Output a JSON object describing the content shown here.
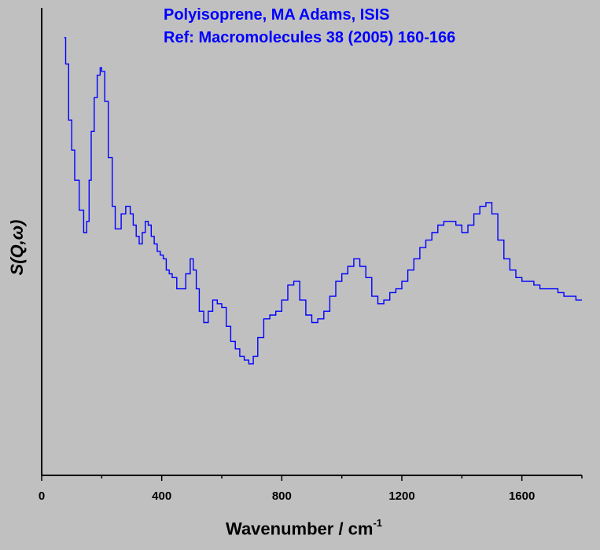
{
  "chart_data": {
    "type": "line",
    "title_lines": [
      "Polyisoprene, MA Adams, ISIS",
      "Ref: Macromolecules 38 (2005) 160-166"
    ],
    "xlabel": {
      "text": "Wavenumber / cm",
      "superscript": "-1"
    },
    "ylabel": "S(Q,ω)",
    "xlim": [
      0,
      1800
    ],
    "ylim": [
      0,
      100
    ],
    "x_ticks": [
      0,
      400,
      800,
      1200,
      1600
    ],
    "x_tick_labels": [
      "0",
      "400",
      "800",
      "1200",
      "1600"
    ],
    "y_tick_labels_shown": false,
    "grid": false,
    "series": [
      {
        "color": "#0000ff",
        "x": [
          75,
          80,
          90,
          100,
          110,
          125,
          140,
          150,
          158,
          165,
          175,
          185,
          195,
          200,
          210,
          222,
          235,
          245,
          255,
          265,
          280,
          295,
          305,
          315,
          325,
          335,
          345,
          355,
          365,
          375,
          385,
          395,
          405,
          415,
          425,
          435,
          450,
          465,
          480,
          495,
          505,
          515,
          525,
          540,
          555,
          570,
          585,
          600,
          615,
          630,
          645,
          660,
          675,
          690,
          705,
          720,
          740,
          760,
          780,
          800,
          820,
          840,
          860,
          880,
          900,
          920,
          940,
          960,
          980,
          1000,
          1020,
          1040,
          1050,
          1060,
          1080,
          1100,
          1120,
          1140,
          1160,
          1180,
          1200,
          1220,
          1240,
          1260,
          1280,
          1300,
          1320,
          1340,
          1360,
          1380,
          1400,
          1420,
          1440,
          1460,
          1480,
          1500,
          1520,
          1540,
          1560,
          1580,
          1600,
          1620,
          1640,
          1660,
          1680,
          1700,
          1720,
          1740,
          1760,
          1780,
          1800
        ],
        "y": [
          100,
          93,
          78,
          70,
          62,
          54,
          48,
          51,
          62,
          75,
          84,
          90,
          92,
          91,
          83,
          68,
          55,
          49,
          49,
          53,
          55,
          53,
          50,
          47,
          45,
          48,
          51,
          50,
          47,
          45,
          43,
          42,
          41,
          38,
          37,
          36,
          33,
          33,
          37,
          41,
          38,
          33,
          27,
          24,
          27,
          30,
          29,
          28,
          23,
          19,
          17,
          15,
          14,
          13,
          15,
          20,
          25,
          26,
          27,
          30,
          34,
          35,
          30,
          26,
          24,
          25,
          27,
          31,
          35,
          37,
          39,
          41,
          41,
          39,
          36,
          31,
          29,
          30,
          32,
          33,
          35,
          38,
          41,
          44,
          46,
          48,
          50,
          51,
          51,
          50,
          48,
          50,
          53,
          55,
          56,
          53,
          46,
          41,
          38,
          36,
          35,
          35,
          34,
          33,
          33,
          33,
          32,
          31,
          31,
          30,
          30
        ]
      }
    ]
  }
}
